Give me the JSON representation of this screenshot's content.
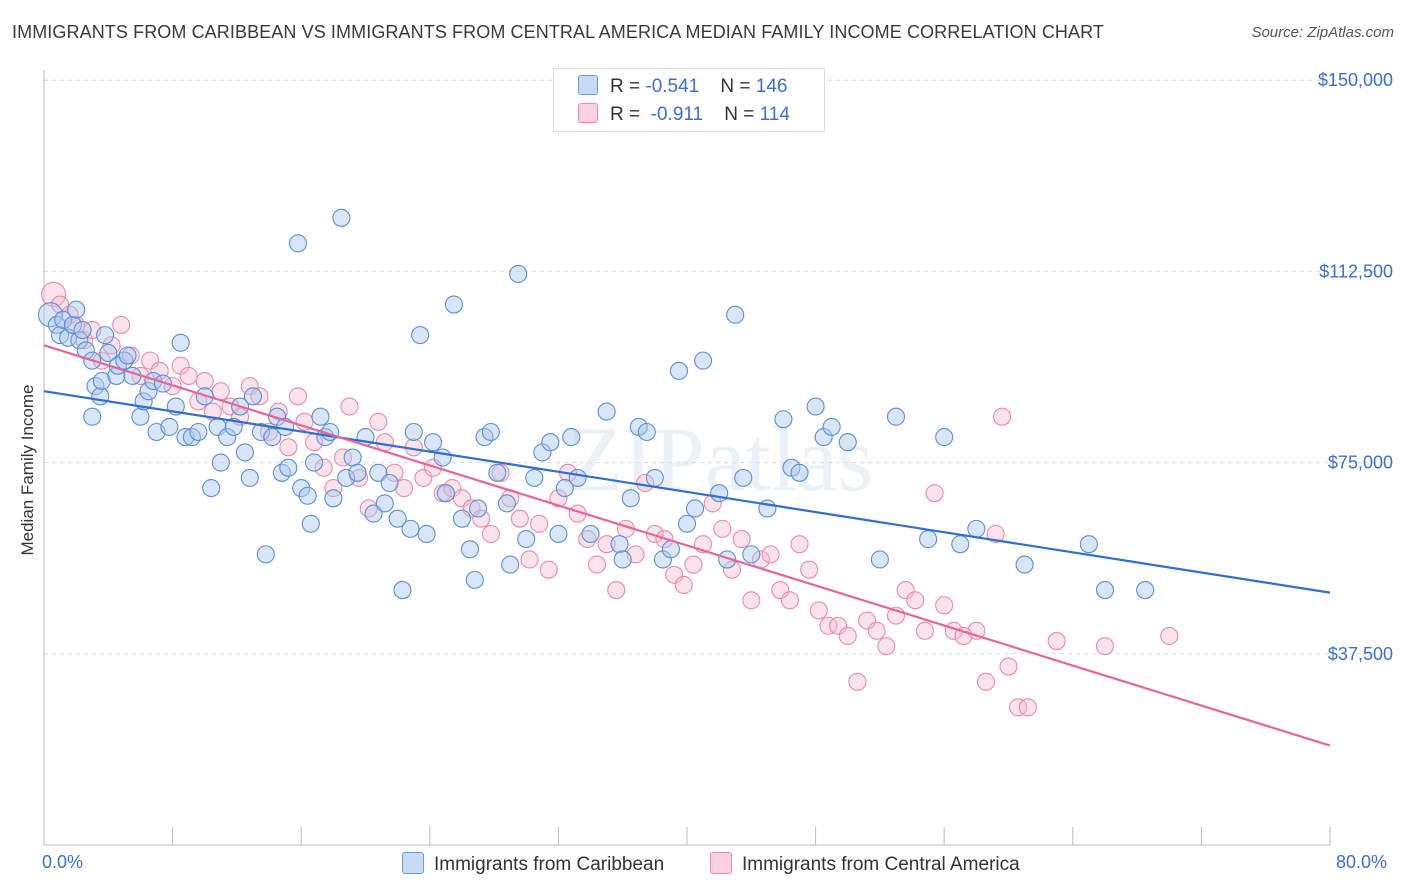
{
  "title": "IMMIGRANTS FROM CARIBBEAN VS IMMIGRANTS FROM CENTRAL AMERICA MEDIAN FAMILY INCOME CORRELATION CHART",
  "source": "Source: ZipAtlas.com",
  "watermark": "ZIPatlas",
  "legend": {
    "rows": [
      {
        "r_label": "R = ",
        "r_value": "-0.541",
        "n_label": "N = ",
        "n_value": "146",
        "color": "#aac8f0"
      },
      {
        "r_label": "R = ",
        "r_value": " -0.911",
        "n_label": "N = ",
        "n_value": "114",
        "color": "#f6b8cc"
      }
    ]
  },
  "bottom_legend": {
    "caribbean": "Immigrants from Caribbean",
    "central_america": "Immigrants from Central America"
  },
  "x_labels": {
    "left": "0.0%",
    "right": "80.0%"
  },
  "chart_data": {
    "type": "scatter",
    "title": "IMMIGRANTS FROM CARIBBEAN VS IMMIGRANTS FROM CENTRAL AMERICA MEDIAN FAMILY INCOME CORRELATION CHART",
    "xlabel": "",
    "ylabel": "Median Family Income",
    "xlim": [
      0,
      80
    ],
    "ylim": [
      0,
      152000
    ],
    "y_ticks": [
      37500,
      75000,
      112500,
      150000
    ],
    "y_tick_labels": [
      "$37,500",
      "$75,000",
      "$112,500",
      "$150,000"
    ],
    "grid": true,
    "series": [
      {
        "name": "Immigrants from Caribbean",
        "color": "#5b8fd6",
        "trend": {
          "x": [
            0,
            80
          ],
          "y": [
            89000,
            49500
          ],
          "color": "#2f6fcf"
        },
        "points": [
          [
            0.4,
            104000
          ],
          [
            0.8,
            102000
          ],
          [
            1.0,
            100000
          ],
          [
            1.2,
            103000
          ],
          [
            1.5,
            99500
          ],
          [
            1.8,
            102000
          ],
          [
            2.0,
            105000
          ],
          [
            2.2,
            99000
          ],
          [
            2.4,
            101000
          ],
          [
            2.6,
            97000
          ],
          [
            3.0,
            95000
          ],
          [
            3.0,
            84000
          ],
          [
            3.2,
            90000
          ],
          [
            3.5,
            88000
          ],
          [
            3.6,
            91000
          ],
          [
            3.8,
            100000
          ],
          [
            4.0,
            96500
          ],
          [
            4.5,
            92000
          ],
          [
            4.6,
            94000
          ],
          [
            5.0,
            95000
          ],
          [
            5.2,
            96000
          ],
          [
            5.5,
            92000
          ],
          [
            6.0,
            84000
          ],
          [
            6.2,
            87000
          ],
          [
            6.5,
            89000
          ],
          [
            6.8,
            91000
          ],
          [
            7.0,
            81000
          ],
          [
            7.4,
            90500
          ],
          [
            7.8,
            82000
          ],
          [
            8.2,
            86000
          ],
          [
            8.5,
            98500
          ],
          [
            8.8,
            80000
          ],
          [
            9.2,
            80000
          ],
          [
            9.6,
            81000
          ],
          [
            10.0,
            88000
          ],
          [
            10.4,
            70000
          ],
          [
            10.8,
            82000
          ],
          [
            11.0,
            75000
          ],
          [
            11.4,
            80000
          ],
          [
            11.8,
            82000
          ],
          [
            12.2,
            86000
          ],
          [
            12.5,
            77000
          ],
          [
            12.8,
            72000
          ],
          [
            13.0,
            88000
          ],
          [
            13.5,
            81000
          ],
          [
            13.8,
            57000
          ],
          [
            14.2,
            80000
          ],
          [
            14.5,
            84000
          ],
          [
            14.8,
            73000
          ],
          [
            15.0,
            82000
          ],
          [
            15.2,
            74000
          ],
          [
            15.8,
            118000
          ],
          [
            16.0,
            70000
          ],
          [
            16.4,
            68500
          ],
          [
            16.6,
            63000
          ],
          [
            16.8,
            75000
          ],
          [
            17.2,
            84000
          ],
          [
            17.5,
            80000
          ],
          [
            17.8,
            81000
          ],
          [
            18.0,
            68000
          ],
          [
            18.5,
            123000
          ],
          [
            18.8,
            72000
          ],
          [
            19.2,
            76000
          ],
          [
            19.5,
            73000
          ],
          [
            20.0,
            80000
          ],
          [
            20.5,
            65000
          ],
          [
            20.8,
            73000
          ],
          [
            21.2,
            67000
          ],
          [
            21.5,
            71000
          ],
          [
            22.0,
            64000
          ],
          [
            22.3,
            50000
          ],
          [
            22.8,
            62000
          ],
          [
            23.0,
            81000
          ],
          [
            23.4,
            100000
          ],
          [
            23.8,
            61000
          ],
          [
            24.2,
            79000
          ],
          [
            24.8,
            76000
          ],
          [
            25.0,
            69000
          ],
          [
            25.5,
            106000
          ],
          [
            26.0,
            64000
          ],
          [
            26.5,
            58000
          ],
          [
            26.8,
            52000
          ],
          [
            27.0,
            66000
          ],
          [
            27.4,
            80000
          ],
          [
            27.8,
            81000
          ],
          [
            28.2,
            73000
          ],
          [
            28.8,
            67000
          ],
          [
            29.0,
            55000
          ],
          [
            29.5,
            112000
          ],
          [
            30.0,
            60000
          ],
          [
            30.5,
            72000
          ],
          [
            31.0,
            77000
          ],
          [
            31.5,
            79000
          ],
          [
            32.0,
            61000
          ],
          [
            32.4,
            70000
          ],
          [
            32.8,
            80000
          ],
          [
            33.2,
            72000
          ],
          [
            34.0,
            61000
          ],
          [
            35.0,
            85000
          ],
          [
            35.8,
            59000
          ],
          [
            36.0,
            56000
          ],
          [
            36.5,
            68000
          ],
          [
            37.0,
            82000
          ],
          [
            37.5,
            81000
          ],
          [
            38.0,
            72000
          ],
          [
            38.5,
            56000
          ],
          [
            39.0,
            58000
          ],
          [
            39.5,
            93000
          ],
          [
            40.0,
            63000
          ],
          [
            40.5,
            66000
          ],
          [
            41.0,
            95000
          ],
          [
            42.0,
            69000
          ],
          [
            42.5,
            56000
          ],
          [
            43.0,
            104000
          ],
          [
            43.5,
            72000
          ],
          [
            44.0,
            57000
          ],
          [
            45.0,
            66000
          ],
          [
            46.0,
            83500
          ],
          [
            46.5,
            74000
          ],
          [
            47.0,
            73000
          ],
          [
            48.0,
            86000
          ],
          [
            48.5,
            80000
          ],
          [
            49.0,
            82000
          ],
          [
            50.0,
            79000
          ],
          [
            52.0,
            56000
          ],
          [
            53.0,
            84000
          ],
          [
            55.0,
            60000
          ],
          [
            56.0,
            80000
          ],
          [
            57.0,
            59000
          ],
          [
            58.0,
            62000
          ],
          [
            61.0,
            55000
          ],
          [
            65.0,
            59000
          ],
          [
            66.0,
            50000
          ],
          [
            68.5,
            50000
          ]
        ]
      },
      {
        "name": "Immigrants from Central America",
        "color": "#f08aac",
        "trend": {
          "x": [
            0,
            80
          ],
          "y": [
            98000,
            19500
          ],
          "color": "#e8659a"
        },
        "points": [
          [
            0.6,
            108000
          ],
          [
            1.0,
            106000
          ],
          [
            1.6,
            104000
          ],
          [
            2.0,
            102000
          ],
          [
            2.5,
            99000
          ],
          [
            3.0,
            101000
          ],
          [
            3.6,
            95000
          ],
          [
            4.2,
            98000
          ],
          [
            4.8,
            102000
          ],
          [
            5.4,
            96000
          ],
          [
            6.0,
            92000
          ],
          [
            6.6,
            95000
          ],
          [
            7.2,
            93000
          ],
          [
            8.0,
            90000
          ],
          [
            8.5,
            94000
          ],
          [
            9.0,
            92000
          ],
          [
            9.6,
            87000
          ],
          [
            10.0,
            91000
          ],
          [
            10.5,
            85000
          ],
          [
            11.0,
            89000
          ],
          [
            11.6,
            86000
          ],
          [
            12.2,
            84000
          ],
          [
            12.8,
            90000
          ],
          [
            13.4,
            88000
          ],
          [
            14.0,
            81000
          ],
          [
            14.6,
            85000
          ],
          [
            15.2,
            78000
          ],
          [
            15.8,
            88000
          ],
          [
            16.2,
            83000
          ],
          [
            16.8,
            79000
          ],
          [
            17.4,
            74000
          ],
          [
            18.0,
            70000
          ],
          [
            18.6,
            76000
          ],
          [
            19.0,
            86000
          ],
          [
            19.6,
            72000
          ],
          [
            20.2,
            66000
          ],
          [
            20.8,
            83000
          ],
          [
            21.2,
            79000
          ],
          [
            21.8,
            73000
          ],
          [
            22.4,
            70000
          ],
          [
            23.0,
            78000
          ],
          [
            23.6,
            72000
          ],
          [
            24.2,
            74000
          ],
          [
            24.8,
            69000
          ],
          [
            25.4,
            70000
          ],
          [
            26.0,
            68000
          ],
          [
            26.6,
            66000
          ],
          [
            27.2,
            64000
          ],
          [
            27.8,
            61000
          ],
          [
            28.4,
            73000
          ],
          [
            29.0,
            68000
          ],
          [
            29.6,
            64000
          ],
          [
            30.2,
            56000
          ],
          [
            30.8,
            63000
          ],
          [
            31.4,
            54000
          ],
          [
            32.0,
            68000
          ],
          [
            32.6,
            73000
          ],
          [
            33.2,
            65000
          ],
          [
            33.8,
            60000
          ],
          [
            34.4,
            55000
          ],
          [
            35.0,
            59000
          ],
          [
            35.6,
            50000
          ],
          [
            36.2,
            62000
          ],
          [
            36.8,
            57000
          ],
          [
            37.4,
            71000
          ],
          [
            38.0,
            61000
          ],
          [
            38.6,
            60000
          ],
          [
            39.2,
            53000
          ],
          [
            39.8,
            51000
          ],
          [
            40.4,
            55000
          ],
          [
            41.0,
            59000
          ],
          [
            41.6,
            67000
          ],
          [
            42.2,
            62000
          ],
          [
            42.8,
            54000
          ],
          [
            43.4,
            60000
          ],
          [
            44.0,
            48000
          ],
          [
            44.6,
            56000
          ],
          [
            45.2,
            57000
          ],
          [
            45.8,
            50000
          ],
          [
            46.4,
            48000
          ],
          [
            47.0,
            59000
          ],
          [
            47.6,
            54000
          ],
          [
            48.2,
            46000
          ],
          [
            48.8,
            43000
          ],
          [
            49.4,
            43000
          ],
          [
            50.0,
            41000
          ],
          [
            50.6,
            32000
          ],
          [
            51.2,
            44000
          ],
          [
            51.8,
            42000
          ],
          [
            52.4,
            39000
          ],
          [
            53.0,
            45000
          ],
          [
            53.6,
            50000
          ],
          [
            54.2,
            48000
          ],
          [
            54.8,
            42000
          ],
          [
            55.4,
            69000
          ],
          [
            56.0,
            47000
          ],
          [
            56.6,
            42000
          ],
          [
            57.2,
            41000
          ],
          [
            58.0,
            42000
          ],
          [
            58.6,
            32000
          ],
          [
            59.2,
            61000
          ],
          [
            60.0,
            35000
          ],
          [
            60.6,
            27000
          ],
          [
            61.2,
            27000
          ],
          [
            59.6,
            84000
          ],
          [
            63.0,
            40000
          ],
          [
            66.0,
            39000
          ],
          [
            70.0,
            41000
          ]
        ]
      }
    ]
  }
}
